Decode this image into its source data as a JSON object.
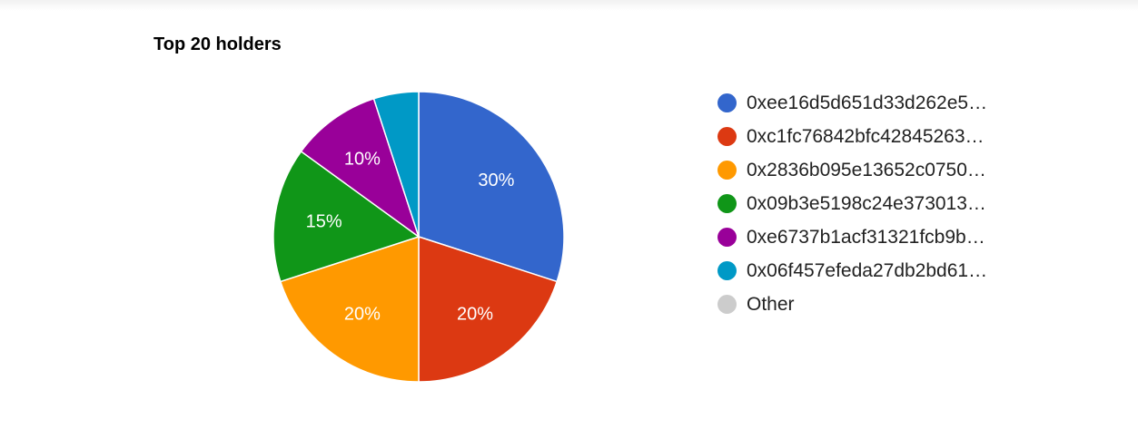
{
  "chart_data": {
    "type": "pie",
    "title": "Top 20 holders",
    "legend_position": "right",
    "slices": [
      {
        "label": "0xee16d5d651d33d262e5…",
        "value": 30,
        "value_label": "30%",
        "color": "#3366cc"
      },
      {
        "label": "0xc1fc76842bfc42845263…",
        "value": 20,
        "value_label": "20%",
        "color": "#dc3912"
      },
      {
        "label": "0x2836b095e13652c0750…",
        "value": 20,
        "value_label": "20%",
        "color": "#ff9900"
      },
      {
        "label": "0x09b3e5198c24e373013…",
        "value": 15,
        "value_label": "15%",
        "color": "#109618"
      },
      {
        "label": "0xe6737b1acf31321fcb9b…",
        "value": 10,
        "value_label": "10%",
        "color": "#990099"
      },
      {
        "label": "0x06f457efeda27db2bd61…",
        "value": 5,
        "value_label": "",
        "color": "#0099c6"
      },
      {
        "label": "Other",
        "value": 0,
        "value_label": "",
        "color": "#cccccc"
      }
    ]
  }
}
